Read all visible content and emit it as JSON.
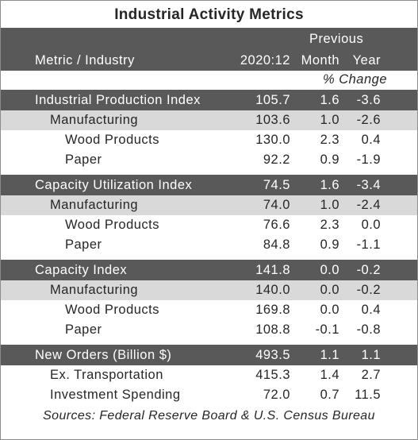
{
  "title": "Industrial Activity Metrics",
  "header": {
    "previous": "Previous",
    "metric": "Metric / Industry",
    "period": "2020:12",
    "month": "Month",
    "year": "Year",
    "change": "% Change"
  },
  "sections": [
    {
      "header": [
        "Industrial Production Index",
        "105.7",
        "1.6",
        "-3.6"
      ],
      "rows": [
        [
          "Manufacturing",
          "103.6",
          "1.0",
          "-2.6"
        ],
        [
          "Wood Products",
          "130.0",
          "2.3",
          "0.4"
        ],
        [
          "Paper",
          "92.2",
          "0.9",
          "-1.9"
        ]
      ]
    },
    {
      "header": [
        "Capacity Utilization Index",
        "74.5",
        "1.6",
        "-3.4"
      ],
      "rows": [
        [
          "Manufacturing",
          "74.0",
          "1.0",
          "-2.4"
        ],
        [
          "Wood Products",
          "76.6",
          "2.3",
          "0.0"
        ],
        [
          "Paper",
          "84.8",
          "0.9",
          "-1.1"
        ]
      ]
    },
    {
      "header": [
        "Capacity Index",
        "141.8",
        "0.0",
        "-0.2"
      ],
      "rows": [
        [
          "Manufacturing",
          "140.0",
          "0.0",
          "-0.2"
        ],
        [
          "Wood Products",
          "169.8",
          "0.0",
          "0.4"
        ],
        [
          "Paper",
          "108.8",
          "-0.1",
          "-0.8"
        ]
      ]
    },
    {
      "header": [
        "New Orders (Billion $)",
        "493.5",
        "1.1",
        "1.1"
      ],
      "rows": [
        [
          "Ex. Transportation",
          "415.3",
          "1.4",
          "2.7"
        ],
        [
          "Investment Spending",
          "72.0",
          "0.7",
          "11.5"
        ]
      ]
    }
  ],
  "source": "Sources: Federal Reserve Board & U.S. Census Bureau"
}
